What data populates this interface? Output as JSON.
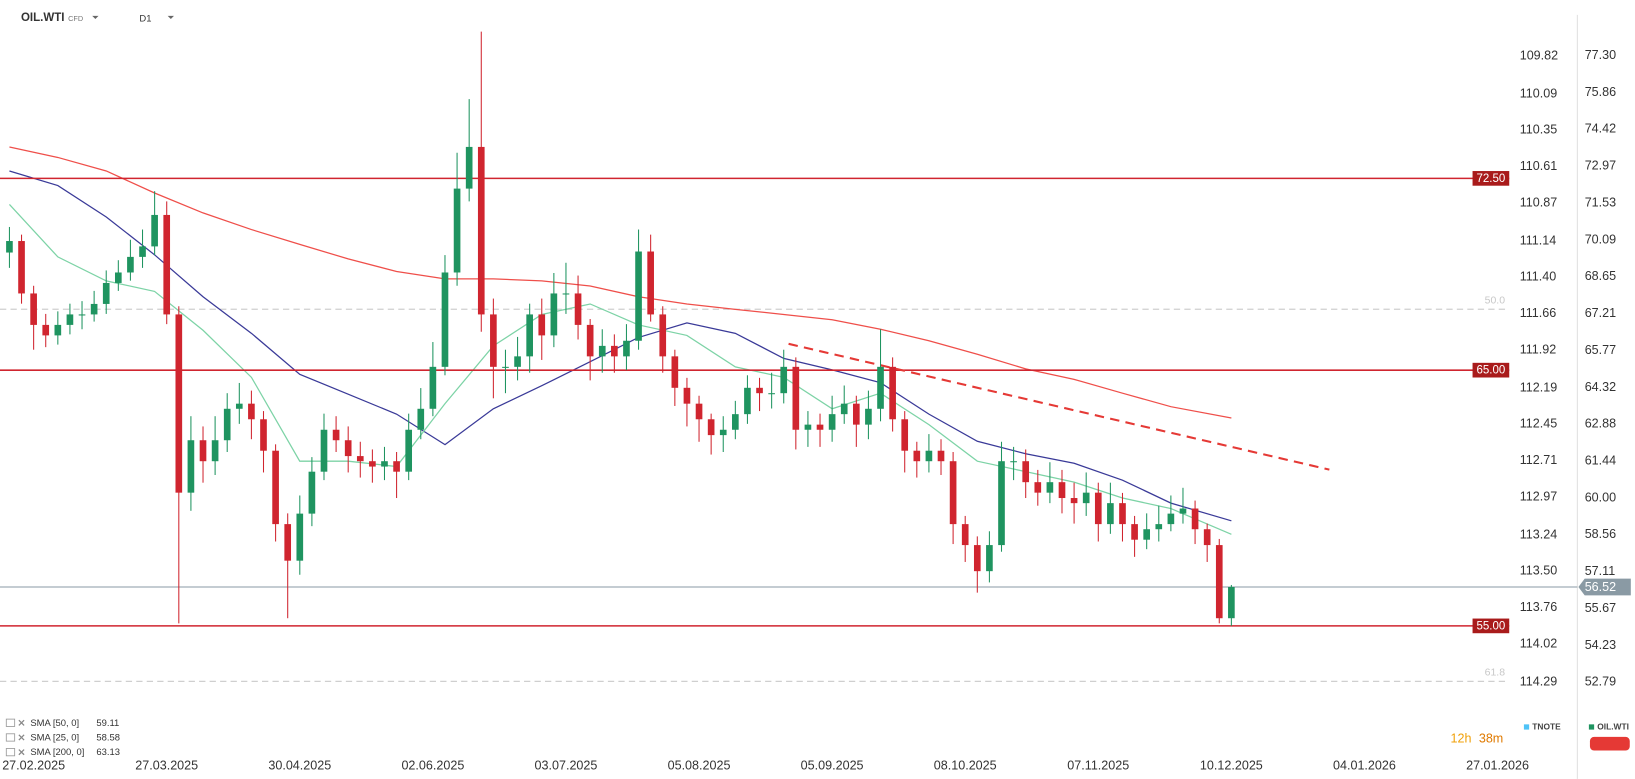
{
  "chart_data": {
    "type": "candlestick",
    "symbol": "OIL.WTI",
    "instrument": "CFD",
    "timeframe": "D1",
    "up_color": "#1f9460",
    "down_color": "#d0252f",
    "open": [
      69.6,
      70.05,
      68.0,
      66.77,
      66.36,
      66.77,
      67.18,
      67.18,
      67.59,
      68.41,
      68.82,
      69.43,
      69.84,
      71.07,
      67.18,
      60.21,
      62.26,
      61.44,
      62.26,
      63.49,
      63.69,
      63.08,
      61.85,
      58.98,
      57.55,
      59.39,
      61.03,
      62.67,
      62.26,
      61.64,
      61.44,
      61.23,
      61.44,
      61.03,
      62.67,
      63.49,
      65.13,
      68.82,
      72.1,
      73.73,
      67.18,
      65.13,
      65.13,
      65.54,
      67.18,
      66.36,
      68.0,
      68.0,
      66.77,
      65.54,
      65.95,
      65.54,
      66.15,
      69.64,
      67.18,
      65.54,
      64.31,
      63.69,
      63.08,
      62.46,
      62.67,
      63.28,
      64.31,
      64.1,
      64.1,
      65.13,
      62.67,
      62.87,
      62.67,
      63.28,
      63.69,
      62.87,
      63.49,
      65.13,
      63.08,
      61.85,
      61.44,
      61.85,
      61.44,
      58.98,
      58.16,
      57.14,
      58.16,
      61.44,
      61.44,
      60.62,
      60.21,
      60.62,
      60.0,
      59.8,
      60.21,
      58.98,
      59.8,
      58.98,
      58.37,
      58.78,
      58.98,
      59.39,
      59.59,
      58.78,
      58.16,
      55.3
    ],
    "high": [
      70.6,
      70.3,
      68.3,
      67.2,
      67.3,
      67.6,
      67.7,
      68.1,
      68.9,
      69.3,
      70.1,
      70.5,
      72.0,
      71.6,
      67.5,
      63.2,
      62.8,
      63.2,
      64.1,
      64.5,
      64.2,
      63.4,
      62.1,
      59.4,
      60.1,
      61.6,
      63.3,
      63.2,
      62.8,
      62.2,
      61.9,
      62.0,
      61.8,
      63.3,
      64.3,
      66.1,
      69.5,
      73.5,
      75.6,
      78.24,
      67.8,
      65.8,
      66.3,
      67.6,
      67.8,
      68.8,
      69.2,
      68.7,
      67.0,
      66.6,
      66.4,
      66.8,
      70.5,
      70.3,
      67.5,
      65.8,
      64.7,
      64.0,
      63.3,
      63.2,
      63.8,
      64.8,
      64.7,
      64.9,
      65.8,
      65.5,
      63.4,
      63.3,
      64.0,
      64.4,
      64.0,
      64.2,
      66.6,
      65.5,
      63.4,
      62.2,
      62.5,
      62.3,
      61.8,
      59.3,
      58.5,
      58.7,
      62.2,
      62.0,
      61.9,
      61.1,
      61.4,
      61.1,
      60.6,
      61.0,
      60.6,
      60.6,
      60.2,
      59.3,
      59.4,
      59.7,
      60.1,
      60.4,
      59.9,
      59.0,
      58.4,
      56.6
    ],
    "low": [
      69.0,
      67.6,
      65.8,
      65.9,
      66.0,
      66.4,
      66.6,
      66.9,
      67.2,
      68.1,
      68.5,
      69.0,
      69.5,
      66.8,
      55.1,
      59.5,
      60.6,
      60.9,
      61.8,
      62.9,
      62.3,
      61.0,
      58.3,
      55.3,
      57.0,
      58.9,
      60.7,
      61.8,
      61.0,
      60.8,
      60.6,
      60.7,
      60.0,
      60.7,
      62.3,
      63.2,
      64.8,
      68.3,
      71.6,
      66.5,
      63.9,
      64.1,
      64.6,
      64.9,
      65.4,
      65.9,
      67.2,
      66.2,
      64.6,
      64.9,
      64.9,
      65.0,
      65.8,
      66.9,
      64.9,
      63.6,
      62.8,
      62.2,
      61.7,
      61.8,
      62.3,
      62.9,
      63.4,
      63.5,
      63.7,
      61.9,
      62.0,
      62.0,
      62.2,
      62.9,
      62.0,
      62.3,
      63.0,
      62.6,
      61.0,
      60.8,
      61.0,
      60.9,
      58.2,
      57.5,
      56.3,
      56.7,
      57.9,
      60.7,
      60.0,
      59.7,
      59.8,
      59.4,
      59.0,
      59.3,
      58.3,
      58.6,
      58.3,
      57.7,
      58.0,
      58.3,
      58.7,
      59.0,
      58.2,
      57.5,
      55.1,
      55.0
    ],
    "close": [
      70.05,
      68.0,
      66.77,
      66.36,
      66.77,
      67.18,
      67.18,
      67.59,
      68.41,
      68.82,
      69.43,
      69.84,
      71.07,
      67.18,
      60.21,
      62.26,
      61.44,
      62.26,
      63.49,
      63.69,
      63.08,
      61.85,
      58.98,
      57.55,
      59.39,
      61.03,
      62.67,
      62.26,
      61.64,
      61.44,
      61.23,
      61.44,
      61.03,
      62.67,
      63.49,
      65.13,
      68.82,
      72.1,
      73.73,
      67.18,
      65.13,
      65.13,
      65.54,
      67.18,
      66.36,
      68.0,
      68.0,
      66.77,
      65.54,
      65.95,
      65.54,
      66.15,
      69.64,
      67.18,
      65.54,
      64.31,
      63.69,
      63.08,
      62.46,
      62.67,
      63.28,
      64.31,
      64.1,
      64.1,
      65.13,
      62.67,
      62.87,
      62.67,
      63.28,
      63.69,
      62.87,
      63.49,
      65.13,
      63.08,
      61.85,
      61.44,
      61.85,
      61.44,
      58.98,
      58.16,
      57.14,
      58.16,
      61.44,
      61.44,
      60.62,
      60.21,
      60.62,
      60.0,
      59.8,
      60.21,
      58.98,
      59.8,
      58.98,
      58.37,
      58.78,
      58.98,
      59.39,
      59.59,
      58.78,
      58.16,
      55.3,
      56.52
    ],
    "xlim": [
      -0.78,
      124.4
    ],
    "xticks": [
      {
        "value": 2,
        "label": "27.02.2025"
      },
      {
        "value": 13,
        "label": "27.03.2025"
      },
      {
        "value": 24,
        "label": "30.04.2025"
      },
      {
        "value": 35,
        "label": "02.06.2025"
      },
      {
        "value": 46,
        "label": "03.07.2025"
      },
      {
        "value": 57,
        "label": "05.08.2025"
      },
      {
        "value": 68,
        "label": "05.09.2025"
      },
      {
        "value": 79,
        "label": "08.10.2025"
      },
      {
        "value": 90,
        "label": "07.11.2025"
      },
      {
        "value": 101,
        "label": "10.12.2025"
      },
      {
        "value": 112,
        "label": "04.01.2026"
      },
      {
        "value": 123,
        "label": "27.01.2026"
      }
    ],
    "ylim": [
      51.6,
      79.47
    ],
    "yticks": [
      {
        "value": 77.3,
        "label": "77.30"
      },
      75.86,
      74.42,
      72.97,
      71.53,
      70.09,
      68.65,
      67.21,
      65.77,
      64.32,
      62.88,
      61.44,
      {
        "value": 60,
        "label": "60.00"
      },
      58.56,
      57.11,
      55.67,
      54.23,
      52.79
    ],
    "y2lim": [
      114.51,
      109.42
    ],
    "y2ticks": [
      109.82,
      110.09,
      110.35,
      110.61,
      110.87,
      111.14,
      {
        "value": 111.4,
        "label": "111.40"
      },
      111.66,
      111.92,
      112.19,
      112.45,
      112.71,
      112.97,
      113.24,
      {
        "value": 113.5,
        "label": "113.50"
      },
      113.76,
      114.02,
      114.29
    ],
    "indicators": [
      {
        "name": "SMA [50, 0]",
        "color": "#3a3a98",
        "x": [
          0,
          4,
          8,
          12,
          16,
          20,
          24,
          28,
          32,
          36,
          40,
          44,
          48,
          52,
          56,
          60,
          64,
          68,
          72,
          76,
          80,
          84,
          88,
          92,
          96,
          101
        ],
        "values": [
          72.79,
          72.22,
          70.99,
          69.51,
          67.87,
          66.44,
          64.84,
          64.06,
          63.28,
          62.09,
          63.49,
          64.39,
          65.33,
          66.28,
          66.85,
          66.44,
          65.46,
          65.01,
          64.51,
          63.28,
          62.22,
          61.73,
          61.36,
          60.7,
          59.8,
          59.11
        ]
      },
      {
        "name": "SMA [25, 0]",
        "color": "#7dd3a6",
        "x": [
          0,
          4,
          8,
          12,
          16,
          20,
          24,
          28,
          32,
          36,
          40,
          44,
          48,
          52,
          56,
          60,
          64,
          68,
          72,
          76,
          80,
          84,
          88,
          92,
          96,
          101
        ],
        "values": [
          71.48,
          69.43,
          68.49,
          68.08,
          66.56,
          64.72,
          61.44,
          61.44,
          61.23,
          63.69,
          65.95,
          67.18,
          67.59,
          66.77,
          66.36,
          65.13,
          64.72,
          63.49,
          64.1,
          62.87,
          61.44,
          61.03,
          60.62,
          60.0,
          59.59,
          58.58
        ]
      },
      {
        "name": "SMA [200, 0]",
        "color": "#ef4f4a",
        "x": [
          0,
          4,
          8,
          12,
          16,
          20,
          24,
          28,
          32,
          36,
          40,
          44,
          48,
          52,
          56,
          60,
          64,
          68,
          72,
          76,
          80,
          84,
          88,
          92,
          96,
          101
        ],
        "values": [
          73.73,
          73.32,
          72.79,
          71.93,
          71.15,
          70.5,
          69.92,
          69.35,
          68.86,
          68.57,
          68.57,
          68.49,
          68.29,
          67.87,
          67.59,
          67.38,
          67.18,
          66.97,
          66.6,
          66.15,
          65.62,
          65.05,
          64.64,
          64.1,
          63.57,
          63.13
        ]
      }
    ],
    "levels": [
      {
        "value": 72.5,
        "label": "72.50"
      },
      {
        "value": 65,
        "label": "65.00"
      },
      {
        "value": 55,
        "label": "55.00"
      }
    ],
    "level_color": "#d0252f",
    "fib_levels": [
      {
        "value": 67.38,
        "label": "50.0"
      },
      {
        "value": 52.83,
        "label": "61.8"
      }
    ],
    "last_price": 56.52,
    "trendline": {
      "x": [
        64.4,
        109.1
      ],
      "values": [
        66.03,
        61.11
      ],
      "color": "#e53935"
    },
    "countdown": {
      "hours": "12h",
      "minutes": "38m"
    },
    "legend": [
      {
        "name": "TNOTE",
        "color": "#4fc3f7"
      },
      {
        "name": "OIL.WTI",
        "color": "#1f9460"
      }
    ]
  }
}
